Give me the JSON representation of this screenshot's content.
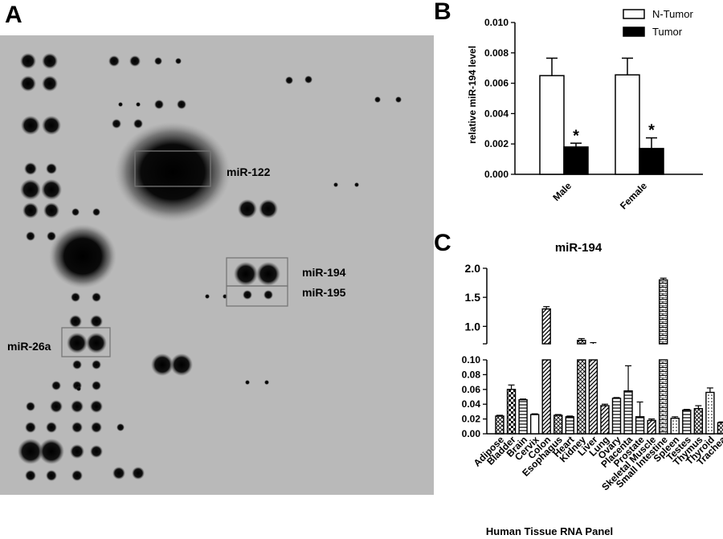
{
  "panels": {
    "a": {
      "letter": "A"
    },
    "b": {
      "letter": "B"
    },
    "c": {
      "letter": "C"
    }
  },
  "blot": {
    "labels": [
      {
        "key": "mir122",
        "text": "miR-122"
      },
      {
        "key": "mir194",
        "text": "miR-194"
      },
      {
        "key": "mir195",
        "text": "miR-195"
      },
      {
        "key": "mir26a",
        "text": "miR-26a"
      }
    ]
  },
  "chart_data": [
    {
      "id": "B",
      "type": "bar",
      "title": "",
      "xlabel": "",
      "ylabel": "relative miR-194 level",
      "categories": [
        "Male",
        "Female"
      ],
      "ylim": [
        0,
        0.01
      ],
      "yticks": [
        "0.000",
        "0.002",
        "0.004",
        "0.006",
        "0.008",
        "0.010"
      ],
      "legend_position": "top-right",
      "series": [
        {
          "name": "N-Tumor",
          "fill": "#ffffff",
          "values": [
            0.0065,
            0.00655
          ],
          "errors": [
            0.00115,
            0.0011
          ]
        },
        {
          "name": "Tumor",
          "fill": "#000000",
          "values": [
            0.0018,
            0.0017
          ],
          "errors": [
            0.00025,
            0.0007
          ]
        }
      ],
      "annotations": [
        {
          "category": "Male",
          "text": "*"
        },
        {
          "category": "Female",
          "text": "*"
        }
      ]
    },
    {
      "id": "C",
      "type": "bar",
      "title": "miR-194",
      "xlabel": "Human Tissue RNA Panel",
      "ylabel": "",
      "axis_break": true,
      "ylim_lower": [
        0,
        0.1
      ],
      "ylim_upper": [
        0.7,
        2.0
      ],
      "yticks_lower": [
        "0.00",
        "0.02",
        "0.04",
        "0.06",
        "0.08",
        "0.10"
      ],
      "yticks_upper": [
        "1.0",
        "1.5",
        "2.0"
      ],
      "categories": [
        "Adipose",
        "Bladder",
        "Brain",
        "Cervix",
        "Colon",
        "Esophagus",
        "Heart",
        "Kidney",
        "Liver",
        "Lung",
        "Ovary",
        "Placenta",
        "Prostate",
        "Skeletal Muscle",
        "Small Intestine",
        "Spleen",
        "Testes",
        "Thymus",
        "Thyroid",
        "Trachea"
      ],
      "values": [
        0.024,
        0.06,
        0.046,
        0.026,
        1.3,
        0.025,
        0.023,
        0.76,
        0.7,
        0.038,
        0.048,
        0.058,
        0.023,
        0.018,
        1.8,
        0.021,
        0.032,
        0.034,
        0.056,
        0.015
      ],
      "errors": [
        0.001,
        0.006,
        0.001,
        0.001,
        0.04,
        0.001,
        0.001,
        0.03,
        0.02,
        0.002,
        0.001,
        0.034,
        0.02,
        0.002,
        0.03,
        0.002,
        0.001,
        0.004,
        0.006,
        0.001
      ],
      "patterns": [
        "crosshatch",
        "checker",
        "hlines",
        "plain",
        "diag",
        "crosshatch",
        "hlines",
        "crosshatch",
        "diag",
        "diag",
        "hlines",
        "hlines",
        "hlines",
        "diag",
        "bricks",
        "dots",
        "hlines",
        "crosshatch",
        "dots",
        "crosshatch"
      ]
    }
  ]
}
